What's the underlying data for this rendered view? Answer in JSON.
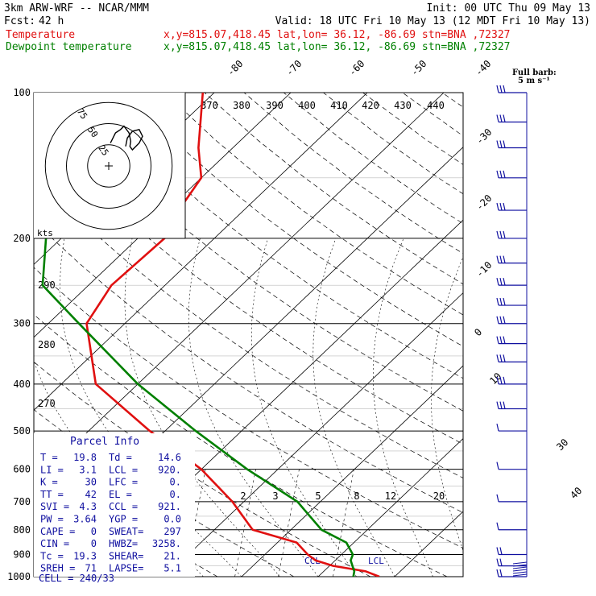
{
  "header": {
    "model": "3km ARW-WRF -- NCAR/MMM",
    "init": "Init: 00 UTC Thu 09 May 13",
    "fcst_label": "Fcst:",
    "fcst_value": "42 h",
    "valid": "Valid: 18 UTC Fri 10 May 13 (12 MDT Fri 10 May 13)",
    "temp_label": "Temperature",
    "temp_info": "x,y=815.07,418.45   lat,lon= 36.12, -86.69  stn=BNA ,72327",
    "dew_label": "Dewpoint temperature",
    "dew_info": "x,y=815.07,418.45   lat,lon= 36.12, -86.69  stn=BNA ,72327"
  },
  "colors": {
    "temperature": "#e01010",
    "dewpoint": "#008000",
    "parcel_text": "#1010a0",
    "grid": "#000000"
  },
  "chart_data": {
    "type": "line",
    "title": "",
    "xlabel": "",
    "ylabel": "",
    "pressure_levels": [
      100,
      200,
      300,
      400,
      500,
      600,
      700,
      800,
      900,
      1000
    ],
    "isotherms": [
      -90,
      -80,
      -70,
      -60,
      -50,
      -40,
      -30,
      -20,
      -10,
      0,
      10,
      20,
      30,
      40
    ],
    "isotherm_labels_top": [
      "-80",
      "-70",
      "-60",
      "-50",
      "-40"
    ],
    "isotherm_labels_right": [
      "-30",
      "-20",
      "-10",
      "0",
      "10",
      "30",
      "40"
    ],
    "theta_e_labels": [
      "370",
      "380",
      "390",
      "400",
      "410",
      "420",
      "430",
      "440"
    ],
    "mixing_ratio_labels": [
      "2",
      "3",
      "5",
      "8",
      "12",
      "20"
    ],
    "adiabat_left_labels": [
      "290",
      "280",
      "270"
    ],
    "series": [
      {
        "name": "Temperature",
        "x": [
          18.0,
          15.5,
          10.5,
          7.4,
          5.6,
          2.5,
          -5.0,
          -11.5,
          -20.0,
          -32.0,
          -45.5,
          -55.0,
          -57.0,
          -56.5,
          -58.5,
          -60.0,
          -64.5,
          -71.5
        ],
        "y": [
          1000,
          975,
          950,
          925,
          900,
          850,
          800,
          700,
          600,
          500,
          400,
          300,
          250,
          200,
          175,
          150,
          130,
          100
        ]
      },
      {
        "name": "Dewpoint temperature",
        "x": [
          14.6,
          14.0,
          13.0,
          12.0,
          11.5,
          9.0,
          4.0,
          -3.0,
          -14.0,
          -26.0,
          -40.0,
          -56.0,
          -66.0,
          -72.0,
          -81.0,
          -85.0,
          -86.0,
          -84.0
        ],
        "y": [
          1000,
          975,
          950,
          925,
          900,
          850,
          800,
          700,
          600,
          500,
          400,
          300,
          250,
          200,
          175,
          150,
          130,
          100
        ]
      }
    ],
    "hodograph": {
      "units_label": "kts",
      "speed_circles": [
        25,
        50,
        75
      ],
      "circle_labels": [
        "25",
        "50",
        "75"
      ],
      "trace_u": [
        2,
        4,
        6,
        8,
        14,
        18,
        24,
        26,
        25,
        28,
        36,
        40,
        36,
        28,
        22,
        20
      ],
      "trace_v": [
        8,
        12,
        16,
        20,
        24,
        28,
        20,
        10,
        4,
        0,
        8,
        16,
        24,
        22,
        14,
        4
      ]
    },
    "wind_barbs": {
      "legend": "Full barb:",
      "legend_units": "5 m s⁻¹",
      "pressures": [
        100,
        115,
        130,
        150,
        175,
        200,
        225,
        250,
        275,
        300,
        330,
        360,
        400,
        450,
        500,
        600,
        700,
        800,
        900,
        950,
        1000
      ]
    }
  },
  "parcel_info": {
    "title": "Parcel Info",
    "rows": [
      [
        "T  =",
        "19.8",
        "Td =",
        "14.6"
      ],
      [
        "LI =",
        "3.1",
        "LCL =",
        "920."
      ],
      [
        "K  =",
        "30",
        "LFC =",
        "0."
      ],
      [
        "TT =",
        "42",
        "EL  =",
        "0."
      ],
      [
        "SVI =",
        "4.3",
        "CCL =",
        "921."
      ],
      [
        "PW  =",
        "3.64",
        "YGP =",
        "0.0"
      ],
      [
        "CAPE =",
        "0",
        "SWEAT=",
        "297"
      ],
      [
        "CIN  =",
        "0",
        "HWBZ=",
        "3258."
      ],
      [
        "Tc  =",
        "19.3",
        "SHEAR=",
        "21."
      ],
      [
        "SREH =",
        "71",
        "LAPSE=",
        "5.1"
      ]
    ],
    "cell": "CELL = 240/33",
    "ccl_marker": "CCL",
    "lcl_marker": "LCL"
  }
}
